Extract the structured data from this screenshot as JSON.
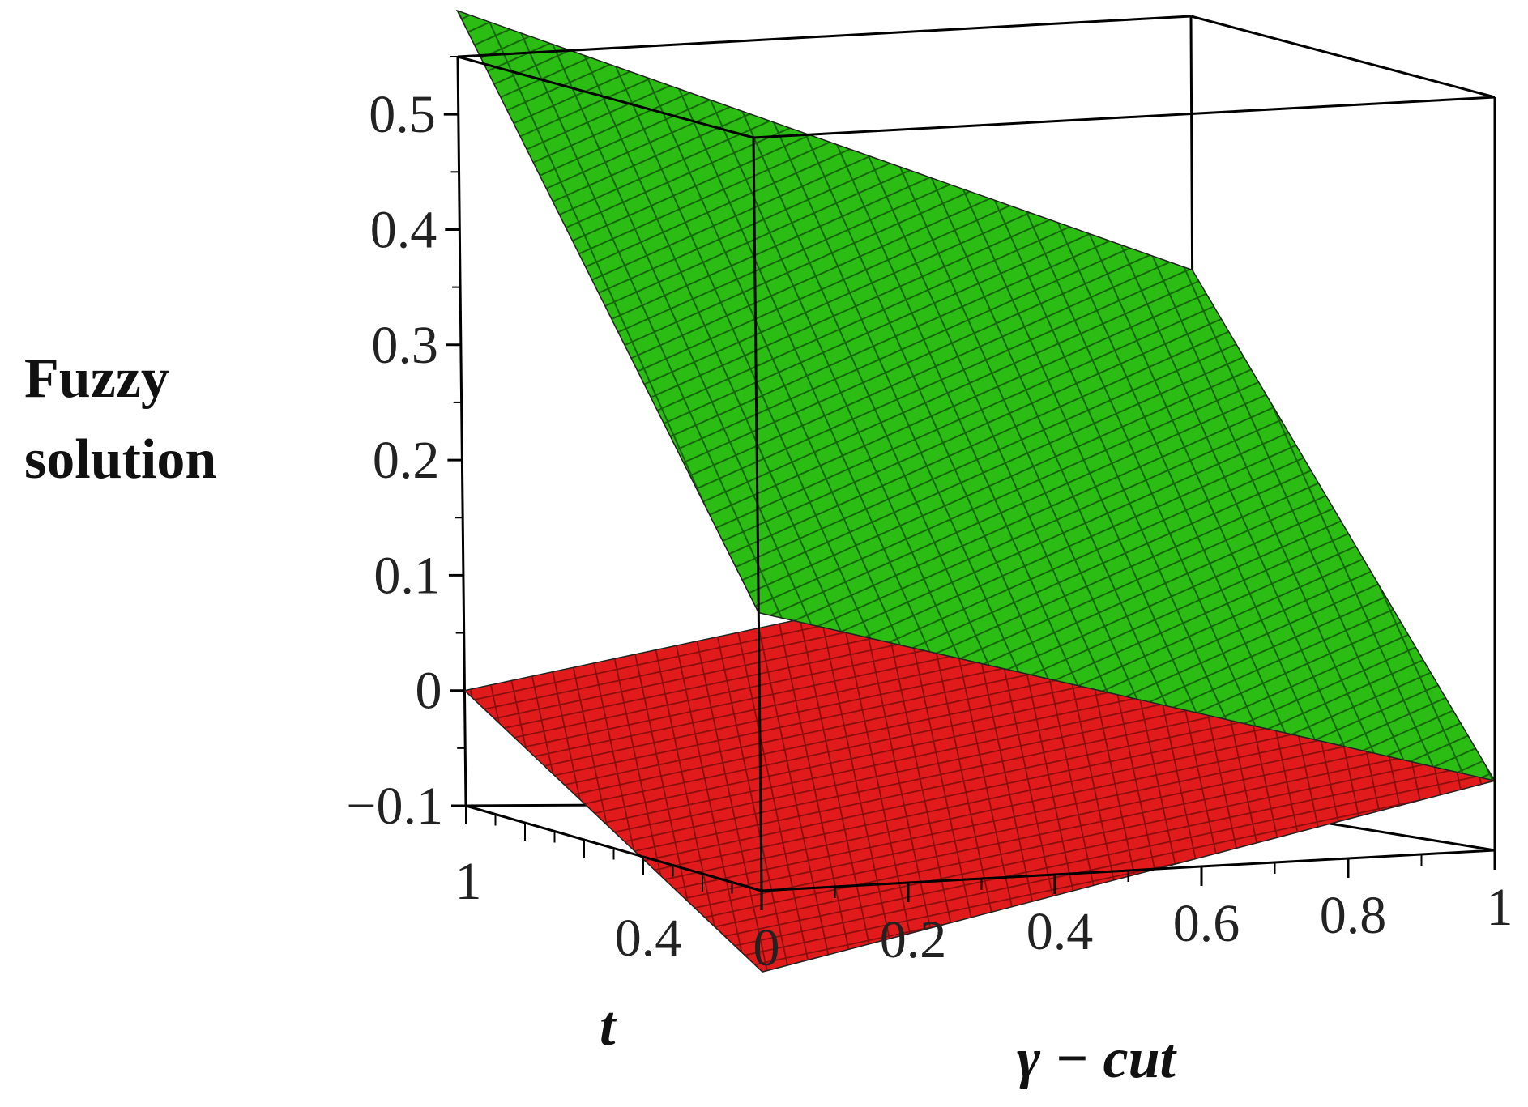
{
  "chart_data": {
    "type": "surface3d",
    "title": "",
    "zlabel_line1": "Fuzzy",
    "zlabel_line2": "solution",
    "xlabel": "γ − cut",
    "ylabel": "t",
    "x_ticks": [
      "0",
      "0.2",
      "0.4",
      "0.6",
      "0.8",
      "1"
    ],
    "y_ticks": [
      "1",
      "0.4"
    ],
    "z_ticks": [
      "0.5",
      "0.4",
      "0.3",
      "0.2",
      "0.1",
      "0",
      "−0.1"
    ],
    "xlim": [
      0,
      1
    ],
    "ylim": [
      0,
      1
    ],
    "zlim": [
      -0.1,
      0.55
    ],
    "surfaces": [
      {
        "color": "#2bbd14",
        "corners": {
          "x0_t0": 0.14,
          "x1_t0": -0.04,
          "x0_t1": 0.59,
          "x1_t1": 0.34
        }
      },
      {
        "color": "#e11b1b",
        "corners": {
          "x0_t0": -0.17,
          "x1_t0": -0.04,
          "x0_t1": 0.0,
          "x1_t1": 0.12
        }
      }
    ]
  }
}
